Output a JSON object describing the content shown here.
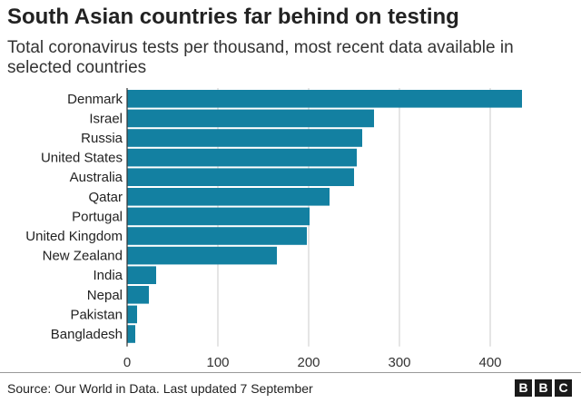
{
  "header": {
    "title": "South Asian countries far behind on testing",
    "subtitle": "Total coronavirus tests per thousand, most recent data available in selected countries"
  },
  "footer": {
    "source": "Source: Our World in Data. Last updated 7 September",
    "logo_letters": [
      "B",
      "B",
      "C"
    ]
  },
  "colors": {
    "bar": "#1380A1",
    "grid": "#cbcbcb",
    "axis": "#333333"
  },
  "chart_data": {
    "type": "bar",
    "orientation": "horizontal",
    "categories": [
      "Denmark",
      "Israel",
      "Russia",
      "United States",
      "Australia",
      "Qatar",
      "Portugal",
      "United Kingdom",
      "New Zealand",
      "India",
      "Nepal",
      "Pakistan",
      "Bangladesh"
    ],
    "values": [
      435,
      272,
      259,
      253,
      250,
      223,
      201,
      198,
      165,
      32,
      24,
      11,
      9
    ],
    "title": "South Asian countries far behind on testing",
    "subtitle": "Total coronavirus tests per thousand, most recent data available in selected countries",
    "xlabel": "",
    "ylabel": "",
    "xlim": [
      0,
      450
    ],
    "xticks": [
      0,
      100,
      200,
      300,
      400
    ],
    "grid": true
  }
}
